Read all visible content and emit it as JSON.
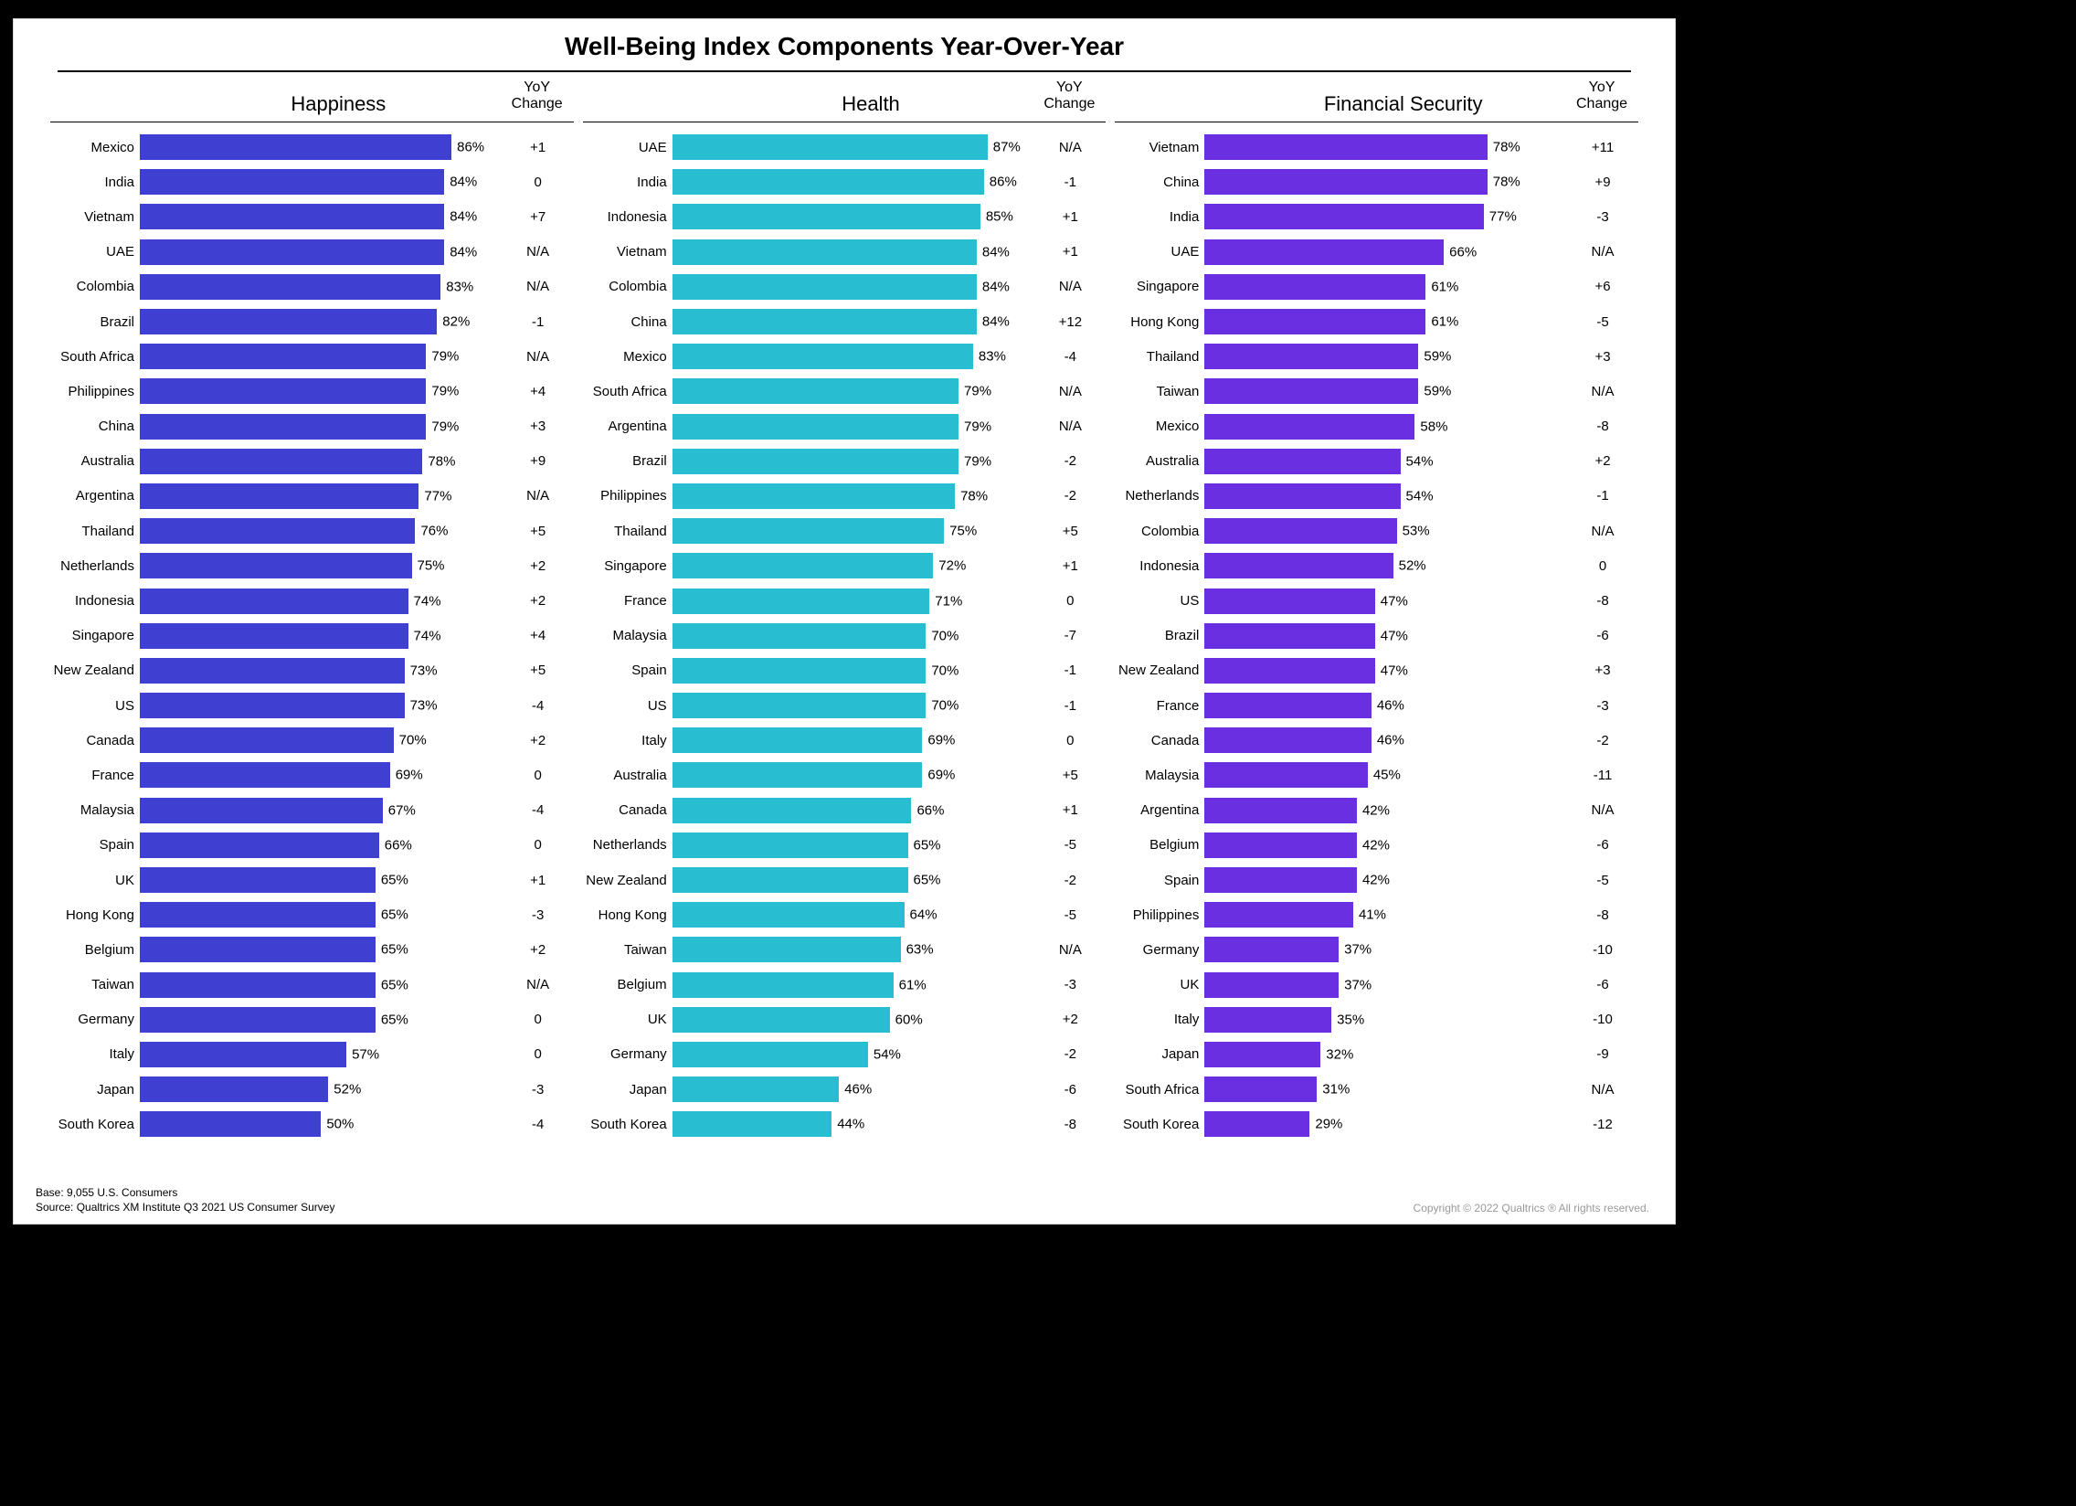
{
  "title": "Well-Being Index Components Year-Over-Year",
  "yoy_header_line1": "YoY",
  "yoy_header_line2": "Change",
  "footer_base": "Base: 9,055 U.S. Consumers",
  "footer_source": "Source: Qualtrics XM Institute Q3 2021 US Consumer Survey",
  "copyright": "Copyright © 2022 Qualtrics ® All rights reserved.",
  "bar_scale_max": 100,
  "colors": {
    "happiness": "#3f3fd1",
    "health": "#29bdd1",
    "financial": "#6a2fe0",
    "text": "#000000",
    "background": "#ffffff",
    "outer": "#000000",
    "copyright": "#9a9a9a"
  },
  "panels": [
    {
      "key": "happiness",
      "title": "Happiness",
      "bar_color": "#3f3fd1",
      "rows": [
        {
          "label": "Mexico",
          "value": 86,
          "yoy": "+1"
        },
        {
          "label": "India",
          "value": 84,
          "yoy": "0"
        },
        {
          "label": "Vietnam",
          "value": 84,
          "yoy": "+7"
        },
        {
          "label": "UAE",
          "value": 84,
          "yoy": "N/A"
        },
        {
          "label": "Colombia",
          "value": 83,
          "yoy": "N/A"
        },
        {
          "label": "Brazil",
          "value": 82,
          "yoy": "-1"
        },
        {
          "label": "South Africa",
          "value": 79,
          "yoy": "N/A"
        },
        {
          "label": "Philippines",
          "value": 79,
          "yoy": "+4"
        },
        {
          "label": "China",
          "value": 79,
          "yoy": "+3"
        },
        {
          "label": "Australia",
          "value": 78,
          "yoy": "+9"
        },
        {
          "label": "Argentina",
          "value": 77,
          "yoy": "N/A"
        },
        {
          "label": "Thailand",
          "value": 76,
          "yoy": "+5"
        },
        {
          "label": "Netherlands",
          "value": 75,
          "yoy": "+2"
        },
        {
          "label": "Indonesia",
          "value": 74,
          "yoy": "+2"
        },
        {
          "label": "Singapore",
          "value": 74,
          "yoy": "+4"
        },
        {
          "label": "New Zealand",
          "value": 73,
          "yoy": "+5"
        },
        {
          "label": "US",
          "value": 73,
          "yoy": "-4"
        },
        {
          "label": "Canada",
          "value": 70,
          "yoy": "+2"
        },
        {
          "label": "France",
          "value": 69,
          "yoy": "0"
        },
        {
          "label": "Malaysia",
          "value": 67,
          "yoy": "-4"
        },
        {
          "label": "Spain",
          "value": 66,
          "yoy": "0"
        },
        {
          "label": "UK",
          "value": 65,
          "yoy": "+1"
        },
        {
          "label": "Hong Kong",
          "value": 65,
          "yoy": "-3"
        },
        {
          "label": "Belgium",
          "value": 65,
          "yoy": "+2"
        },
        {
          "label": "Taiwan",
          "value": 65,
          "yoy": "N/A"
        },
        {
          "label": "Germany",
          "value": 65,
          "yoy": "0"
        },
        {
          "label": "Italy",
          "value": 57,
          "yoy": "0"
        },
        {
          "label": "Japan",
          "value": 52,
          "yoy": "-3"
        },
        {
          "label": "South Korea",
          "value": 50,
          "yoy": "-4"
        }
      ]
    },
    {
      "key": "health",
      "title": "Health",
      "bar_color": "#29bdd1",
      "rows": [
        {
          "label": "UAE",
          "value": 87,
          "yoy": "N/A"
        },
        {
          "label": "India",
          "value": 86,
          "yoy": "-1"
        },
        {
          "label": "Indonesia",
          "value": 85,
          "yoy": "+1"
        },
        {
          "label": "Vietnam",
          "value": 84,
          "yoy": "+1"
        },
        {
          "label": "Colombia",
          "value": 84,
          "yoy": "N/A"
        },
        {
          "label": "China",
          "value": 84,
          "yoy": "+12"
        },
        {
          "label": "Mexico",
          "value": 83,
          "yoy": "-4"
        },
        {
          "label": "South Africa",
          "value": 79,
          "yoy": "N/A"
        },
        {
          "label": "Argentina",
          "value": 79,
          "yoy": "N/A"
        },
        {
          "label": "Brazil",
          "value": 79,
          "yoy": "-2"
        },
        {
          "label": "Philippines",
          "value": 78,
          "yoy": "-2"
        },
        {
          "label": "Thailand",
          "value": 75,
          "yoy": "+5"
        },
        {
          "label": "Singapore",
          "value": 72,
          "yoy": "+1"
        },
        {
          "label": "France",
          "value": 71,
          "yoy": "0"
        },
        {
          "label": "Malaysia",
          "value": 70,
          "yoy": "-7"
        },
        {
          "label": "Spain",
          "value": 70,
          "yoy": "-1"
        },
        {
          "label": "US",
          "value": 70,
          "yoy": "-1"
        },
        {
          "label": "Italy",
          "value": 69,
          "yoy": "0"
        },
        {
          "label": "Australia",
          "value": 69,
          "yoy": "+5"
        },
        {
          "label": "Canada",
          "value": 66,
          "yoy": "+1"
        },
        {
          "label": "Netherlands",
          "value": 65,
          "yoy": "-5"
        },
        {
          "label": "New Zealand",
          "value": 65,
          "yoy": "-2"
        },
        {
          "label": "Hong Kong",
          "value": 64,
          "yoy": "-5"
        },
        {
          "label": "Taiwan",
          "value": 63,
          "yoy": "N/A"
        },
        {
          "label": "Belgium",
          "value": 61,
          "yoy": "-3"
        },
        {
          "label": "UK",
          "value": 60,
          "yoy": "+2"
        },
        {
          "label": "Germany",
          "value": 54,
          "yoy": "-2"
        },
        {
          "label": "Japan",
          "value": 46,
          "yoy": "-6"
        },
        {
          "label": "South Korea",
          "value": 44,
          "yoy": "-8"
        }
      ]
    },
    {
      "key": "financial",
      "title": "Financial Security",
      "bar_color": "#6a2fe0",
      "rows": [
        {
          "label": "Vietnam",
          "value": 78,
          "yoy": "+11"
        },
        {
          "label": "China",
          "value": 78,
          "yoy": "+9"
        },
        {
          "label": "India",
          "value": 77,
          "yoy": "-3"
        },
        {
          "label": "UAE",
          "value": 66,
          "yoy": "N/A"
        },
        {
          "label": "Singapore",
          "value": 61,
          "yoy": "+6"
        },
        {
          "label": "Hong Kong",
          "value": 61,
          "yoy": "-5"
        },
        {
          "label": "Thailand",
          "value": 59,
          "yoy": "+3"
        },
        {
          "label": "Taiwan",
          "value": 59,
          "yoy": "N/A"
        },
        {
          "label": "Mexico",
          "value": 58,
          "yoy": "-8"
        },
        {
          "label": "Australia",
          "value": 54,
          "yoy": "+2"
        },
        {
          "label": "Netherlands",
          "value": 54,
          "yoy": "-1"
        },
        {
          "label": "Colombia",
          "value": 53,
          "yoy": "N/A"
        },
        {
          "label": "Indonesia",
          "value": 52,
          "yoy": "0"
        },
        {
          "label": "US",
          "value": 47,
          "yoy": "-8"
        },
        {
          "label": "Brazil",
          "value": 47,
          "yoy": "-6"
        },
        {
          "label": "New Zealand",
          "value": 47,
          "yoy": "+3"
        },
        {
          "label": "France",
          "value": 46,
          "yoy": "-3"
        },
        {
          "label": "Canada",
          "value": 46,
          "yoy": "-2"
        },
        {
          "label": "Malaysia",
          "value": 45,
          "yoy": "-11"
        },
        {
          "label": "Argentina",
          "value": 42,
          "yoy": "N/A"
        },
        {
          "label": "Belgium",
          "value": 42,
          "yoy": "-6"
        },
        {
          "label": "Spain",
          "value": 42,
          "yoy": "-5"
        },
        {
          "label": "Philippines",
          "value": 41,
          "yoy": "-8"
        },
        {
          "label": "Germany",
          "value": 37,
          "yoy": "-10"
        },
        {
          "label": "UK",
          "value": 37,
          "yoy": "-6"
        },
        {
          "label": "Italy",
          "value": 35,
          "yoy": "-10"
        },
        {
          "label": "Japan",
          "value": 32,
          "yoy": "-9"
        },
        {
          "label": "South Africa",
          "value": 31,
          "yoy": "N/A"
        },
        {
          "label": "South Korea",
          "value": 29,
          "yoy": "-12"
        }
      ]
    }
  ]
}
